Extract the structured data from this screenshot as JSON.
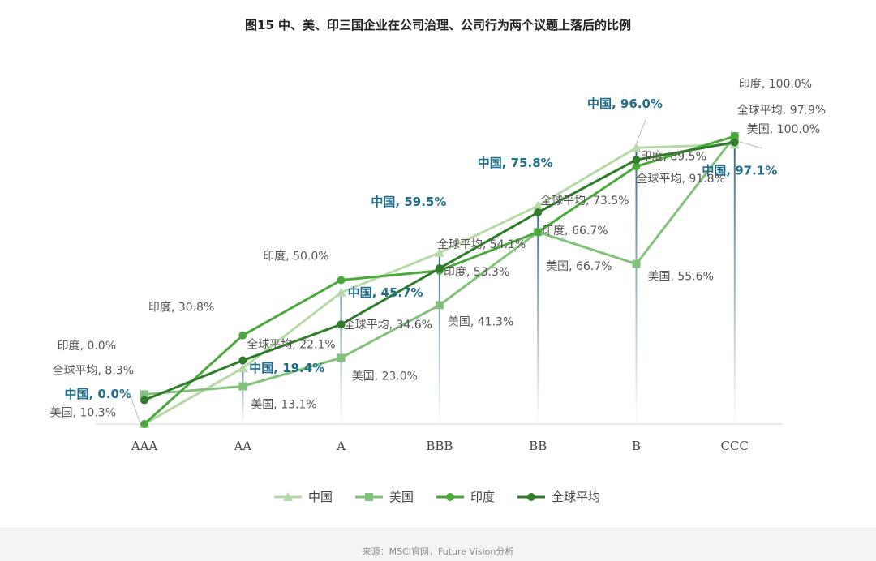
{
  "chart_data": {
    "type": "line",
    "title": "图15 中、美、印三国企业在公司治理、公司行为两个议题上落后的比例",
    "categories": [
      "AAA",
      "AA",
      "A",
      "BBB",
      "BB",
      "B",
      "CCC"
    ],
    "ylim": [
      0,
      100
    ],
    "grid": false,
    "legend_position": "bottom",
    "series": [
      {
        "name": "中国",
        "values": [
          0.0,
          19.4,
          45.7,
          59.5,
          75.8,
          96.0,
          97.1
        ],
        "color": "#b7d9a8",
        "marker": "triangle",
        "labels": [
          "中国, 0.0%",
          "中国, 19.4%",
          "中国, 45.7%",
          "中国, 59.5%",
          "中国, 75.8%",
          "中国, 96.0%",
          "中国, 97.1%"
        ]
      },
      {
        "name": "美国",
        "values": [
          10.3,
          13.1,
          23.0,
          41.3,
          66.7,
          55.6,
          100.0
        ],
        "color": "#82c27a",
        "marker": "square",
        "labels": [
          "美国, 10.3%",
          "美国, 13.1%",
          "美国, 23.0%",
          "美国, 41.3%",
          "美国, 66.7%",
          "美国, 55.6%",
          "美国, 100.0%"
        ]
      },
      {
        "name": "印度",
        "values": [
          0.0,
          30.8,
          50.0,
          53.3,
          66.7,
          89.5,
          100.0
        ],
        "color": "#4aa83c",
        "marker": "circle",
        "labels": [
          "印度, 0.0%",
          "印度, 30.8%",
          "印度, 50.0%",
          "印度, 53.3%",
          "印度, 66.7%",
          "印度, 89.5%",
          "印度, 100.0%"
        ]
      },
      {
        "name": "全球平均",
        "values": [
          8.3,
          22.1,
          34.6,
          54.1,
          73.5,
          91.8,
          97.9
        ],
        "color": "#2f7d2a",
        "marker": "circle",
        "labels": [
          "全球平均, 8.3%",
          "全球平均, 22.1%",
          "全球平均, 34.6%",
          "全球平均, 54.1%",
          "全球平均, 73.5%",
          "全球平均, 91.8%",
          "全球平均, 97.9%"
        ]
      }
    ]
  },
  "source": "来源：MSCI官网，Future Vision分析",
  "colors": {
    "china_label": "#1f6e8c",
    "label_gray": "#555555",
    "drop_line": "#3d6f8c"
  }
}
